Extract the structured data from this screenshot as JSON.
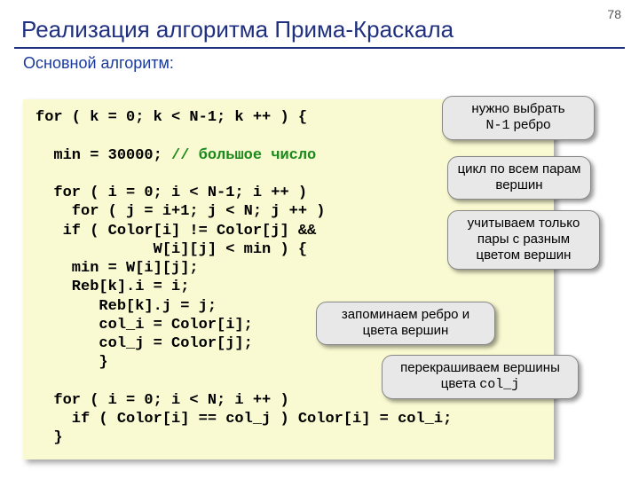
{
  "page_number": "78",
  "title": "Реализация алгоритма Прима-Краскала",
  "subtitle": "Основной алгоритм:",
  "colors": {
    "title": "#203080",
    "subtitle": "#1a3a9a",
    "code_bg": "#fafad2",
    "comment": "#1a8a1a",
    "callout_bg": "#e8e8e8",
    "shadow": "rgba(0,0,0,0.35)"
  },
  "code": {
    "l1": "for ( k = 0; k < N-1; k ++ ) {",
    "l2": "  min = 30000; ",
    "l2c": "// большое число",
    "l3": "  for ( i = 0; i < N-1; i ++ )",
    "l4": "    for ( j = i+1; j < N; j ++ )",
    "l5": "   if ( Color[i] != Color[j] &&",
    "l6": "             W[i][j] < min ) {",
    "l7": "    min = W[i][j];",
    "l8": "    Reb[k].i = i;",
    "l9": "       Reb[k].j = j;",
    "l10": "       col_i = Color[i];",
    "l11": "       col_j = Color[j];",
    "l12": "       }",
    "l13": "  for ( i = 0; i < N; i ++ )",
    "l14": "    if ( Color[i] == col_j ) Color[i] = col_i;",
    "l15": "  }"
  },
  "callouts": {
    "c1_a": "нужно выбрать",
    "c1_b": "N-1",
    "c1_c": " ребро",
    "c2": "цикл по всем парам вершин",
    "c3": "учитываем только пары с разным цветом вершин",
    "c4": "запоминаем ребро и цвета вершин",
    "c5_a": "перекрашиваем вершины цвета ",
    "c5_b": "col_j"
  }
}
